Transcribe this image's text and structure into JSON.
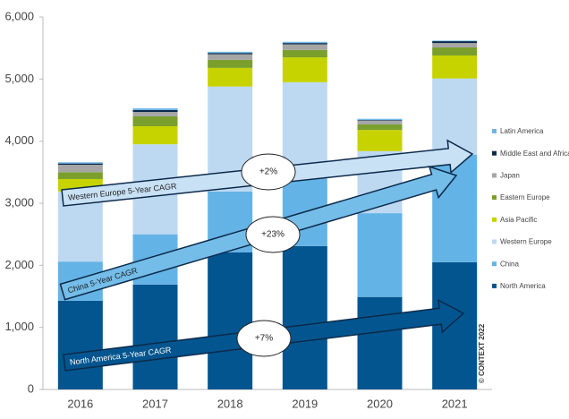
{
  "chart_data": {
    "type": "stacked_bar",
    "categories": [
      "2016",
      "2017",
      "2018",
      "2019",
      "2020",
      "2021"
    ],
    "series": [
      {
        "name": "North America",
        "color": "#03558f",
        "values": [
          1430,
          1690,
          2210,
          2310,
          1490,
          2050
        ]
      },
      {
        "name": "China",
        "color": "#64b3e6",
        "values": [
          630,
          810,
          980,
          1090,
          1350,
          1730
        ]
      },
      {
        "name": "Western Europe",
        "color": "#bdd9f2",
        "values": [
          1130,
          1450,
          1690,
          1550,
          1000,
          1230
        ]
      },
      {
        "name": "Asia Pacific",
        "color": "#c6d300",
        "values": [
          200,
          290,
          300,
          400,
          340,
          370
        ]
      },
      {
        "name": "Eastern Europe",
        "color": "#7a9f2d",
        "values": [
          110,
          160,
          130,
          120,
          90,
          130
        ]
      },
      {
        "name": "Japan",
        "color": "#a6a6a6",
        "values": [
          120,
          70,
          90,
          90,
          60,
          70
        ]
      },
      {
        "name": "Middle East and Africa",
        "color": "#0d2a4a",
        "values": [
          20,
          30,
          20,
          20,
          10,
          30
        ]
      },
      {
        "name": "Latin America",
        "color": "#6db6e6",
        "values": [
          20,
          30,
          20,
          20,
          20,
          10
        ]
      }
    ],
    "ylim": [
      0,
      6000
    ],
    "yticks": [
      0,
      {
        "value": 1000,
        "label": "1,000"
      },
      {
        "value": 2000,
        "label": "2,000"
      },
      {
        "value": 3000,
        "label": "3,000"
      },
      {
        "value": 4000,
        "label": "4,000"
      },
      {
        "value": 5000,
        "label": "5,000"
      },
      {
        "value": 6000,
        "label": "6,000"
      }
    ],
    "annotations": [
      {
        "text": "Western Europe 5-Year CAGR",
        "growth": "+2%"
      },
      {
        "text": "China 5-Year CAGR",
        "growth": "+23%"
      },
      {
        "text": "North America 5-Year CAGR",
        "growth": "+7%"
      }
    ],
    "copyright": "© CONTEXT 2022"
  }
}
